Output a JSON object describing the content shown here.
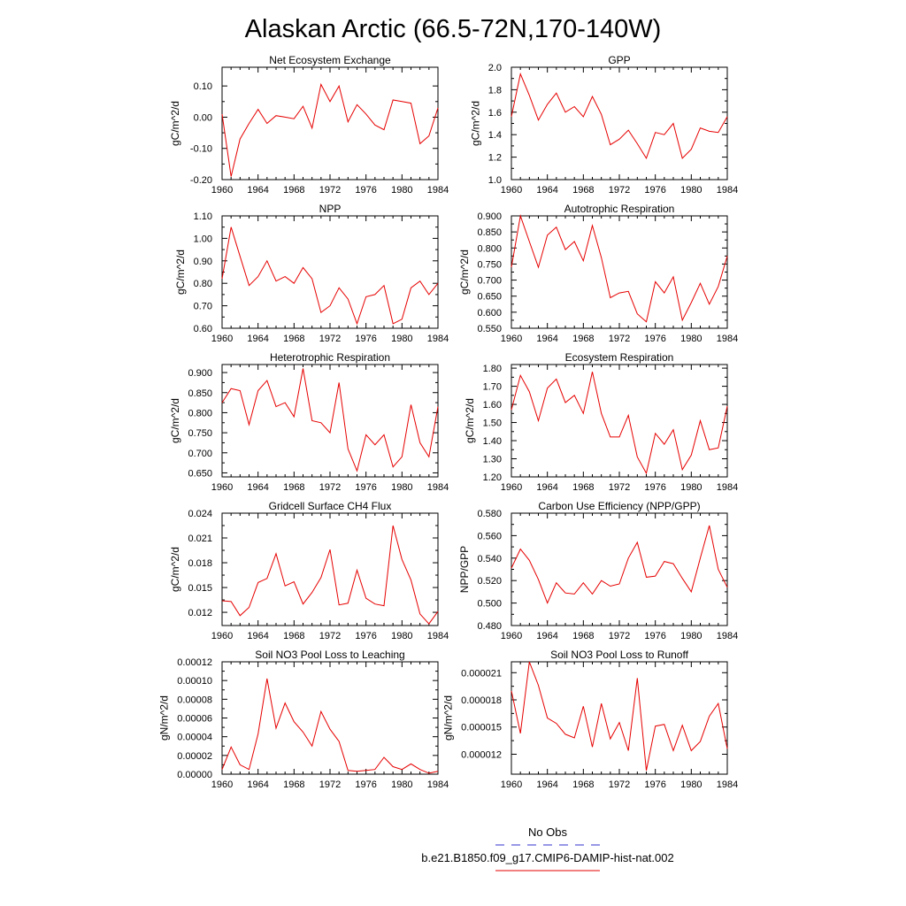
{
  "figure": {
    "title": "Alaskan Arctic (66.5-72N,170-140W)"
  },
  "legend": [
    {
      "label": "No Obs",
      "color": "#3333cc",
      "dash": "dashed"
    },
    {
      "label": "b.e21.B1850.f09_g17.CMIP6-DAMIP-hist-nat.002",
      "color": "#e60000",
      "dash": "solid"
    }
  ],
  "colors": {
    "series": "#e60000",
    "obs": "#3333cc",
    "axis": "#000000"
  },
  "chart_data": [
    {
      "type": "line",
      "title": "Net Ecosystem Exchange",
      "xlabel": "",
      "ylabel": "gC/m^2/d",
      "xlim": [
        1960,
        1984
      ],
      "ylim": [
        -0.2,
        0.16
      ],
      "xticks": [
        1960,
        1964,
        1968,
        1972,
        1976,
        1980,
        1984
      ],
      "yticks": [
        "-0.20",
        "-0.10",
        "0.00",
        "0.10"
      ],
      "yticks_values": [
        -0.2,
        -0.1,
        0.0,
        0.1
      ],
      "x": [
        1960,
        1961,
        1962,
        1963,
        1964,
        1965,
        1966,
        1967,
        1968,
        1969,
        1970,
        1971,
        1972,
        1973,
        1974,
        1975,
        1976,
        1977,
        1978,
        1979,
        1980,
        1981,
        1982,
        1983,
        1984
      ],
      "series": [
        {
          "name": "b.e21.B1850.f09_g17.CMIP6-DAMIP-hist-nat.002",
          "values": [
            0.01,
            -0.19,
            -0.07,
            -0.02,
            0.025,
            -0.02,
            0.005,
            0.0,
            -0.005,
            0.035,
            -0.035,
            0.105,
            0.05,
            0.1,
            -0.015,
            0.04,
            0.01,
            -0.025,
            -0.04,
            0.055,
            0.05,
            0.045,
            -0.085,
            -0.06,
            0.03
          ]
        }
      ]
    },
    {
      "type": "line",
      "title": "GPP",
      "xlabel": "",
      "ylabel": "gC/m^2/d",
      "xlim": [
        1960,
        1984
      ],
      "ylim": [
        1.0,
        2.0
      ],
      "xticks": [
        1960,
        1964,
        1968,
        1972,
        1976,
        1980,
        1984
      ],
      "yticks": [
        "1.0",
        "1.2",
        "1.4",
        "1.6",
        "1.8",
        "2.0"
      ],
      "yticks_values": [
        1.0,
        1.2,
        1.4,
        1.6,
        1.8,
        2.0
      ],
      "x": [
        1960,
        1961,
        1962,
        1963,
        1964,
        1965,
        1966,
        1967,
        1968,
        1969,
        1970,
        1971,
        1972,
        1973,
        1974,
        1975,
        1976,
        1977,
        1978,
        1979,
        1980,
        1981,
        1982,
        1983,
        1984
      ],
      "series": [
        {
          "name": "b.e21.B1850.f09_g17.CMIP6-DAMIP-hist-nat.002",
          "values": [
            1.56,
            1.94,
            1.75,
            1.53,
            1.67,
            1.77,
            1.6,
            1.65,
            1.56,
            1.74,
            1.58,
            1.31,
            1.36,
            1.44,
            1.32,
            1.19,
            1.42,
            1.4,
            1.5,
            1.19,
            1.27,
            1.46,
            1.43,
            1.42,
            1.56
          ]
        }
      ]
    },
    {
      "type": "line",
      "title": "NPP",
      "xlabel": "",
      "ylabel": "gC/m^2/d",
      "xlim": [
        1960,
        1984
      ],
      "ylim": [
        0.6,
        1.1
      ],
      "xticks": [
        1960,
        1964,
        1968,
        1972,
        1976,
        1980,
        1984
      ],
      "yticks": [
        "0.60",
        "0.70",
        "0.80",
        "0.90",
        "1.00",
        "1.10"
      ],
      "yticks_values": [
        0.6,
        0.7,
        0.8,
        0.9,
        1.0,
        1.1
      ],
      "x": [
        1960,
        1961,
        1962,
        1963,
        1964,
        1965,
        1966,
        1967,
        1968,
        1969,
        1970,
        1971,
        1972,
        1973,
        1974,
        1975,
        1976,
        1977,
        1978,
        1979,
        1980,
        1981,
        1982,
        1983,
        1984
      ],
      "series": [
        {
          "name": "b.e21.B1850.f09_g17.CMIP6-DAMIP-hist-nat.002",
          "values": [
            0.82,
            1.05,
            0.92,
            0.79,
            0.83,
            0.9,
            0.81,
            0.83,
            0.8,
            0.87,
            0.82,
            0.67,
            0.7,
            0.78,
            0.73,
            0.62,
            0.74,
            0.75,
            0.79,
            0.62,
            0.64,
            0.78,
            0.81,
            0.75,
            0.8
          ]
        }
      ]
    },
    {
      "type": "line",
      "title": "Autotrophic Respiration",
      "xlabel": "",
      "ylabel": "gC/m^2/d",
      "xlim": [
        1960,
        1984
      ],
      "ylim": [
        0.55,
        0.9
      ],
      "xticks": [
        1960,
        1964,
        1968,
        1972,
        1976,
        1980,
        1984
      ],
      "yticks": [
        "0.550",
        "0.600",
        "0.650",
        "0.700",
        "0.750",
        "0.800",
        "0.850",
        "0.900"
      ],
      "yticks_values": [
        0.55,
        0.6,
        0.65,
        0.7,
        0.75,
        0.8,
        0.85,
        0.9
      ],
      "x": [
        1960,
        1961,
        1962,
        1963,
        1964,
        1965,
        1966,
        1967,
        1968,
        1969,
        1970,
        1971,
        1972,
        1973,
        1974,
        1975,
        1976,
        1977,
        1978,
        1979,
        1980,
        1981,
        1982,
        1983,
        1984
      ],
      "series": [
        {
          "name": "b.e21.B1850.f09_g17.CMIP6-DAMIP-hist-nat.002",
          "values": [
            0.74,
            0.9,
            0.82,
            0.74,
            0.84,
            0.865,
            0.795,
            0.82,
            0.76,
            0.87,
            0.77,
            0.645,
            0.66,
            0.665,
            0.595,
            0.57,
            0.695,
            0.66,
            0.71,
            0.575,
            0.63,
            0.69,
            0.625,
            0.68,
            0.775
          ]
        }
      ]
    },
    {
      "type": "line",
      "title": "Heterotrophic Respiration",
      "xlabel": "",
      "ylabel": "gC/m^2/d",
      "xlim": [
        1960,
        1984
      ],
      "ylim": [
        0.64,
        0.92
      ],
      "xticks": [
        1960,
        1964,
        1968,
        1972,
        1976,
        1980,
        1984
      ],
      "yticks": [
        "0.650",
        "0.700",
        "0.750",
        "0.800",
        "0.850",
        "0.900"
      ],
      "yticks_values": [
        0.65,
        0.7,
        0.75,
        0.8,
        0.85,
        0.9
      ],
      "x": [
        1960,
        1961,
        1962,
        1963,
        1964,
        1965,
        1966,
        1967,
        1968,
        1969,
        1970,
        1971,
        1972,
        1973,
        1974,
        1975,
        1976,
        1977,
        1978,
        1979,
        1980,
        1981,
        1982,
        1983,
        1984
      ],
      "series": [
        {
          "name": "b.e21.B1850.f09_g17.CMIP6-DAMIP-hist-nat.002",
          "values": [
            0.825,
            0.86,
            0.855,
            0.77,
            0.855,
            0.88,
            0.815,
            0.825,
            0.79,
            0.91,
            0.78,
            0.775,
            0.75,
            0.875,
            0.71,
            0.655,
            0.745,
            0.72,
            0.745,
            0.665,
            0.69,
            0.82,
            0.725,
            0.69,
            0.815
          ]
        }
      ]
    },
    {
      "type": "line",
      "title": "Ecosystem Respiration",
      "xlabel": "",
      "ylabel": "gC/m^2/d",
      "xlim": [
        1960,
        1984
      ],
      "ylim": [
        1.2,
        1.82
      ],
      "xticks": [
        1960,
        1964,
        1968,
        1972,
        1976,
        1980,
        1984
      ],
      "yticks": [
        "1.20",
        "1.30",
        "1.40",
        "1.50",
        "1.60",
        "1.70",
        "1.80"
      ],
      "yticks_values": [
        1.2,
        1.3,
        1.4,
        1.5,
        1.6,
        1.7,
        1.8
      ],
      "x": [
        1960,
        1961,
        1962,
        1963,
        1964,
        1965,
        1966,
        1967,
        1968,
        1969,
        1970,
        1971,
        1972,
        1973,
        1974,
        1975,
        1976,
        1977,
        1978,
        1979,
        1980,
        1981,
        1982,
        1983,
        1984
      ],
      "series": [
        {
          "name": "b.e21.B1850.f09_g17.CMIP6-DAMIP-hist-nat.002",
          "values": [
            1.57,
            1.76,
            1.67,
            1.51,
            1.69,
            1.74,
            1.61,
            1.65,
            1.55,
            1.78,
            1.55,
            1.42,
            1.42,
            1.54,
            1.31,
            1.22,
            1.44,
            1.38,
            1.46,
            1.24,
            1.32,
            1.51,
            1.35,
            1.36,
            1.59
          ]
        }
      ]
    },
    {
      "type": "line",
      "title": "Gridcell Surface CH4 Flux",
      "xlabel": "",
      "ylabel": "gC/m^2/d",
      "xlim": [
        1960,
        1984
      ],
      "ylim": [
        0.0104,
        0.024
      ],
      "xticks": [
        1960,
        1964,
        1968,
        1972,
        1976,
        1980,
        1984
      ],
      "yticks": [
        "0.012",
        "0.015",
        "0.018",
        "0.021",
        "0.024"
      ],
      "yticks_values": [
        0.012,
        0.015,
        0.018,
        0.021,
        0.024
      ],
      "x": [
        1960,
        1961,
        1962,
        1963,
        1964,
        1965,
        1966,
        1967,
        1968,
        1969,
        1970,
        1971,
        1972,
        1973,
        1974,
        1975,
        1976,
        1977,
        1978,
        1979,
        1980,
        1981,
        1982,
        1983,
        1984
      ],
      "series": [
        {
          "name": "b.e21.B1850.f09_g17.CMIP6-DAMIP-hist-nat.002",
          "values": [
            0.0134,
            0.0133,
            0.0116,
            0.0126,
            0.0156,
            0.0161,
            0.0191,
            0.0152,
            0.0157,
            0.013,
            0.0144,
            0.0162,
            0.0196,
            0.0129,
            0.0131,
            0.0171,
            0.0137,
            0.013,
            0.0128,
            0.0225,
            0.0184,
            0.0159,
            0.0118,
            0.0106,
            0.0121
          ]
        }
      ]
    },
    {
      "type": "line",
      "title": "Carbon Use Efficiency (NPP/GPP)",
      "xlabel": "",
      "ylabel": "NPP/GPP",
      "xlim": [
        1960,
        1984
      ],
      "ylim": [
        0.48,
        0.58
      ],
      "xticks": [
        1960,
        1964,
        1968,
        1972,
        1976,
        1980,
        1984
      ],
      "yticks": [
        "0.480",
        "0.500",
        "0.520",
        "0.540",
        "0.560",
        "0.580"
      ],
      "yticks_values": [
        0.48,
        0.5,
        0.52,
        0.54,
        0.56,
        0.58
      ],
      "x": [
        1960,
        1961,
        1962,
        1963,
        1964,
        1965,
        1966,
        1967,
        1968,
        1969,
        1970,
        1971,
        1972,
        1973,
        1974,
        1975,
        1976,
        1977,
        1978,
        1979,
        1980,
        1981,
        1982,
        1983,
        1984
      ],
      "series": [
        {
          "name": "b.e21.B1850.f09_g17.CMIP6-DAMIP-hist-nat.002",
          "values": [
            0.531,
            0.548,
            0.538,
            0.521,
            0.5,
            0.518,
            0.509,
            0.508,
            0.518,
            0.508,
            0.52,
            0.515,
            0.517,
            0.54,
            0.554,
            0.523,
            0.524,
            0.537,
            0.535,
            0.522,
            0.51,
            0.54,
            0.569,
            0.53,
            0.514
          ]
        }
      ]
    },
    {
      "type": "line",
      "title": "Soil NO3 Pool Loss to Leaching",
      "xlabel": "",
      "ylabel": "gN/m^2/d",
      "xlim": [
        1960,
        1984
      ],
      "ylim": [
        0.0,
        0.00012
      ],
      "xticks": [
        1960,
        1964,
        1968,
        1972,
        1976,
        1980,
        1984
      ],
      "yticks": [
        "0.00000",
        "0.00002",
        "0.00004",
        "0.00006",
        "0.00008",
        "0.00010",
        "0.00012"
      ],
      "yticks_values": [
        0.0,
        2e-05,
        4e-05,
        6e-05,
        8e-05,
        0.0001,
        0.00012
      ],
      "x": [
        1960,
        1961,
        1962,
        1963,
        1964,
        1965,
        1966,
        1967,
        1968,
        1969,
        1970,
        1971,
        1972,
        1973,
        1974,
        1975,
        1976,
        1977,
        1978,
        1979,
        1980,
        1981,
        1982,
        1983,
        1984
      ],
      "series": [
        {
          "name": "b.e21.B1850.f09_g17.CMIP6-DAMIP-hist-nat.002",
          "values": [
            5e-06,
            2.9e-05,
            1e-05,
            5e-06,
            4.3e-05,
            0.000102,
            4.9e-05,
            7.6e-05,
            5.6e-05,
            4.5e-05,
            3e-05,
            6.7e-05,
            4.8e-05,
            3.5e-05,
            4e-06,
            3e-06,
            4e-06,
            5e-06,
            1.8e-05,
            8e-06,
            5e-06,
            1.1e-05,
            5e-06,
            1e-06,
            3e-06
          ]
        }
      ]
    },
    {
      "type": "line",
      "title": "Soil NO3 Pool Loss to Runoff",
      "xlabel": "",
      "ylabel": "gN/m^2/d",
      "xlim": [
        1960,
        1984
      ],
      "ylim": [
        9.8e-06,
        2.22e-05
      ],
      "xticks": [
        1960,
        1964,
        1968,
        1972,
        1976,
        1980,
        1984
      ],
      "yticks": [
        "0.000012",
        "0.000015",
        "0.000018",
        "0.000021"
      ],
      "yticks_values": [
        1.2e-05,
        1.5e-05,
        1.8e-05,
        2.1e-05
      ],
      "x": [
        1960,
        1961,
        1962,
        1963,
        1964,
        1965,
        1966,
        1967,
        1968,
        1969,
        1970,
        1971,
        1972,
        1973,
        1974,
        1975,
        1976,
        1977,
        1978,
        1979,
        1980,
        1981,
        1982,
        1983,
        1984
      ],
      "series": [
        {
          "name": "b.e21.B1850.f09_g17.CMIP6-DAMIP-hist-nat.002",
          "values": [
            1.9e-05,
            1.43e-05,
            2.22e-05,
            1.96e-05,
            1.6e-05,
            1.54e-05,
            1.42e-05,
            1.38e-05,
            1.73e-05,
            1.28e-05,
            1.76e-05,
            1.37e-05,
            1.55e-05,
            1.24e-05,
            2.04e-05,
            1.02e-05,
            1.51e-05,
            1.53e-05,
            1.24e-05,
            1.52e-05,
            1.24e-05,
            1.34e-05,
            1.62e-05,
            1.76e-05,
            1.26e-05
          ]
        }
      ]
    }
  ]
}
